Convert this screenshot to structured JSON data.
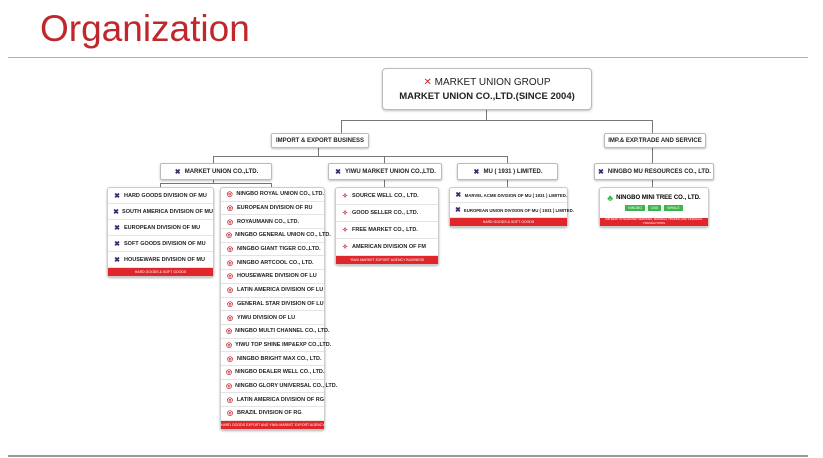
{
  "title": "Organization",
  "top": {
    "line1": "MARKET UNION GROUP",
    "line2": "MARKET UNION CO.,LTD.(SINCE 2004)"
  },
  "branches": {
    "import_export": "IMPORT & EXPORT BUSINESS",
    "trade_service": "IMP.& EXP.TRADE AND SERVICE"
  },
  "companies": {
    "mu": "MARKET UNION CO.,LTD.",
    "yiwu": "YIWU MARKET UNION CO.,LTD.",
    "mu1931": "MU ( 1931 ) LIMITED.",
    "resources": "NINGBO MU RESOURCES CO., LTD."
  },
  "mu_list": {
    "items": [
      "HARD GOODS DIVISION OF MU",
      "SOUTH AMERICA DIVISION OF MU",
      "EUROPEAN DIVISION OF MU",
      "SOFT GOODS DIVISION OF MU",
      "HOUSEWARE DIVISION OF MU"
    ],
    "footer": "HARD GOODS & SOFT GOODS"
  },
  "ningbo_list": {
    "items": [
      "NINGBO ROYAL UNION CO., LTD.",
      "EUROPEAN DIVISION OF RU",
      "ROYAUMANN CO., LTD.",
      "NINGBO GENERAL UNION CO., LTD.",
      "NINGBO GIANT TIGER CO.,LTD.",
      "NINGBO ARTCOOL CO., LTD.",
      "HOUSEWARE DIVISION OF LU",
      "LATIN AMERICA DIVISION OF LU",
      "GENERAL STAR DIVISION OF LU",
      "YIWU DIVISION OF LU",
      "NINGBO MULTI CHANNEL CO., LTD.",
      "YIWU TOP SHINE IMP&EXP CO.,LTD.",
      "NINGBO BRIGHT MAX CO., LTD.",
      "NINGBO DEALER WELL CO., LTD.",
      "NINGBO GLORY UNIVERSAL CO., LTD.",
      "LATIN AMERICA DIVISION OF RG",
      "BRAZIL DIVISION OF RG"
    ],
    "footer": "HARD GOODS EXPORT AND YIWU MARKET EXPORT AGENCY BUSINESS"
  },
  "yiwu_list": {
    "items": [
      "SOURCE WELL CO., LTD.",
      "GOOD SELLER CO., LTD.",
      "FREE MARKET CO., LTD.",
      "AMERICAN DIVISION OF FM"
    ],
    "footer": "YIWU MARKET EXPORT AGENCY BUSINESS"
  },
  "mu1931_list": {
    "items": [
      "MARVEL ACME DIVISION OF MU ( 1931 ) LIMITED.",
      "EUROPEAN UNION DIVISION OF MU ( 1931 ) LIMITED."
    ],
    "footer": "HARD GOODS & SOFT GOODS"
  },
  "minitree": {
    "name": "NINGBO MINI TREE CO., LTD.",
    "tags": [
      "NINGBO",
      "DIGI",
      "WHALE"
    ],
    "footer": "IMP.&EXP. INTEGRATED SERVICES, MATERIAL TRADING AND FINANCIAL TRANSACTIONS"
  },
  "colors": {
    "accent": "#c0272d",
    "footer_red": "#e0262b",
    "tag_green": "#3cb54a"
  }
}
